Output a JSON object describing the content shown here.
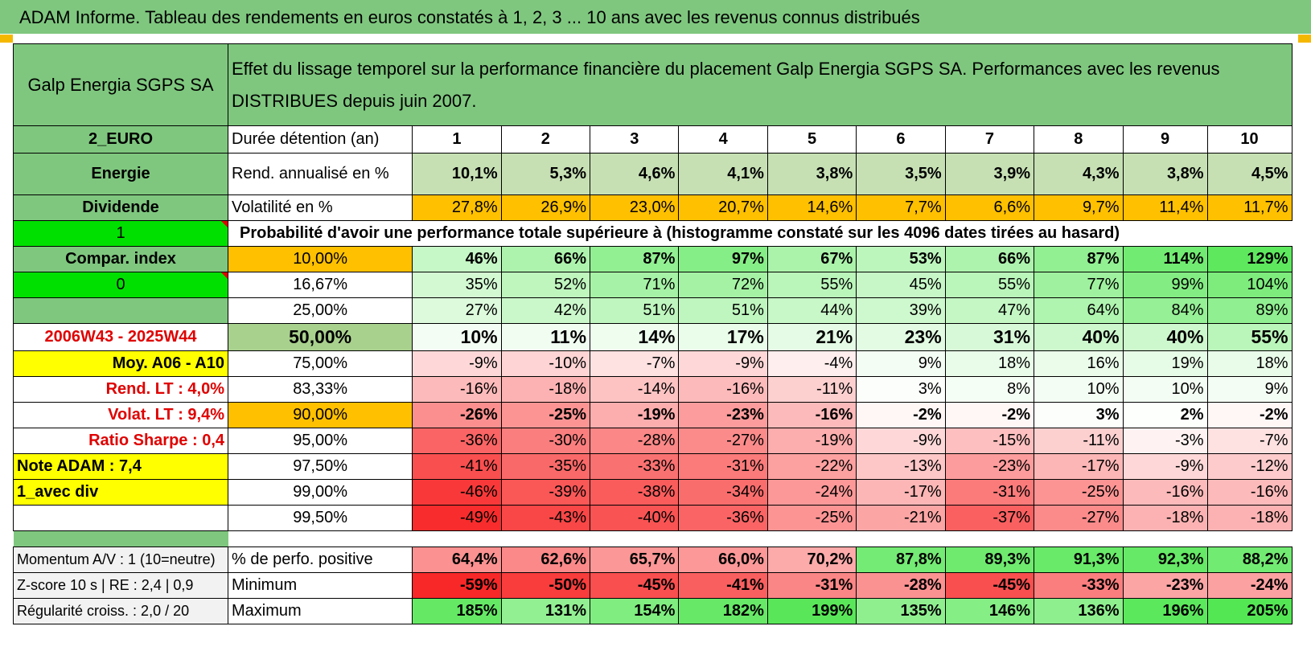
{
  "title": "ADAM Informe. Tableau des rendements en euros constatés à 1, 2, 3 ... 10 ans avec les revenus connus distribués",
  "company": "Galp Energia SGPS SA",
  "description": "Effet du lissage temporel sur la performance financière du placement Galp Energia SGPS SA. Performances avec les revenus DISTRIBUES depuis juin 2007.",
  "side": {
    "currency": "2_EURO",
    "sector": "Energie",
    "type": "Dividende",
    "flag1": "1",
    "compar": "Compar. index",
    "flag0": "0",
    "period": "2006W43 - 2025W44",
    "moy": "Moy. A06 - A10",
    "rend_lt": "Rend. LT :   4,0%",
    "volat_lt": "Volat. LT :   9,4%",
    "sharpe": "Ratio Sharpe :    0,4",
    "note": "Note ADAM : 7,4",
    "avec_div": "1_avec div"
  },
  "header_row": {
    "label": "Durée détention (an)",
    "years": [
      "1",
      "2",
      "3",
      "4",
      "5",
      "6",
      "7",
      "8",
      "9",
      "10"
    ]
  },
  "rend_row": {
    "label": "Rend. annualisé en %",
    "values": [
      "10,1%",
      "5,3%",
      "4,6%",
      "4,1%",
      "3,8%",
      "3,5%",
      "3,9%",
      "4,3%",
      "3,8%",
      "4,5%"
    ]
  },
  "vol_row": {
    "label": "Volatilité en %",
    "values": [
      "27,8%",
      "26,9%",
      "23,0%",
      "20,7%",
      "14,6%",
      "7,7%",
      "6,6%",
      "9,7%",
      "11,4%",
      "11,7%"
    ]
  },
  "prob_title": "Probabilité d'avoir une performance totale supérieure à (histogramme constaté sur les 4096 dates tirées au hasard)",
  "quantiles": [
    {
      "pct": "10,00%",
      "values": [
        "46%",
        "66%",
        "87%",
        "97%",
        "67%",
        "53%",
        "66%",
        "87%",
        "114%",
        "129%"
      ]
    },
    {
      "pct": "16,67%",
      "values": [
        "35%",
        "52%",
        "71%",
        "72%",
        "55%",
        "45%",
        "55%",
        "77%",
        "99%",
        "104%"
      ]
    },
    {
      "pct": "25,00%",
      "values": [
        "27%",
        "42%",
        "51%",
        "51%",
        "44%",
        "39%",
        "47%",
        "64%",
        "84%",
        "89%"
      ]
    },
    {
      "pct": "50,00%",
      "values": [
        "10%",
        "11%",
        "14%",
        "17%",
        "21%",
        "23%",
        "31%",
        "40%",
        "40%",
        "55%"
      ]
    },
    {
      "pct": "75,00%",
      "values": [
        "-9%",
        "-10%",
        "-7%",
        "-9%",
        "-4%",
        "9%",
        "18%",
        "16%",
        "19%",
        "18%"
      ]
    },
    {
      "pct": "83,33%",
      "values": [
        "-16%",
        "-18%",
        "-14%",
        "-16%",
        "-11%",
        "3%",
        "8%",
        "10%",
        "10%",
        "9%"
      ]
    },
    {
      "pct": "90,00%",
      "values": [
        "-26%",
        "-25%",
        "-19%",
        "-23%",
        "-16%",
        "-2%",
        "-2%",
        "3%",
        "2%",
        "-2%"
      ]
    },
    {
      "pct": "95,00%",
      "values": [
        "-36%",
        "-30%",
        "-28%",
        "-27%",
        "-19%",
        "-9%",
        "-15%",
        "-11%",
        "-3%",
        "-7%"
      ]
    },
    {
      "pct": "97,50%",
      "values": [
        "-41%",
        "-35%",
        "-33%",
        "-31%",
        "-22%",
        "-13%",
        "-23%",
        "-17%",
        "-9%",
        "-12%"
      ]
    },
    {
      "pct": "99,00%",
      "values": [
        "-46%",
        "-39%",
        "-38%",
        "-34%",
        "-24%",
        "-17%",
        "-31%",
        "-25%",
        "-16%",
        "-16%"
      ]
    },
    {
      "pct": "99,50%",
      "values": [
        "-49%",
        "-43%",
        "-40%",
        "-36%",
        "-25%",
        "-21%",
        "-37%",
        "-27%",
        "-18%",
        "-18%"
      ]
    }
  ],
  "bottom": [
    {
      "side": "Momentum A/V : 1 (10=neutre)",
      "label": "% de perfo. positive",
      "values": [
        "64,4%",
        "62,6%",
        "65,7%",
        "66,0%",
        "70,2%",
        "87,8%",
        "89,3%",
        "91,3%",
        "92,3%",
        "88,2%"
      ]
    },
    {
      "side": "Z-score 10 s | RE : 2,4 | 0,9",
      "label": "Minimum",
      "values": [
        "-59%",
        "-50%",
        "-45%",
        "-41%",
        "-31%",
        "-28%",
        "-45%",
        "-33%",
        "-23%",
        "-24%"
      ]
    },
    {
      "side": "Régularité croiss. : 2,0 / 20",
      "label": "Maximum",
      "values": [
        "185%",
        "131%",
        "154%",
        "182%",
        "199%",
        "135%",
        "146%",
        "136%",
        "196%",
        "205%"
      ]
    }
  ]
}
